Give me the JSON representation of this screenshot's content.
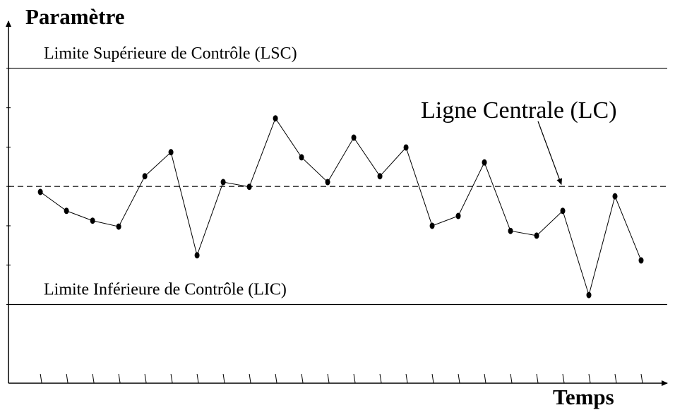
{
  "chart_data": {
    "type": "line",
    "ylabel": "Paramètre",
    "xlabel": "Temps",
    "x": [
      1,
      2,
      3,
      4,
      5,
      6,
      7,
      8,
      9,
      10,
      11,
      12,
      13,
      14,
      15,
      16,
      17,
      18,
      19,
      20,
      21,
      22,
      23,
      24
    ],
    "values": [
      4.86,
      4.38,
      4.13,
      3.98,
      5.26,
      5.87,
      3.25,
      5.11,
      4.99,
      6.73,
      5.74,
      5.11,
      6.24,
      5.26,
      5.99,
      4.0,
      4.25,
      5.61,
      3.87,
      3.75,
      4.38,
      2.24,
      4.75,
      3.12
    ],
    "color": "#000000",
    "xlim": [
      -0.22,
      25
    ],
    "xticks": [
      1,
      2,
      3,
      4,
      5,
      6,
      7,
      8,
      9,
      10,
      11,
      12,
      13,
      14,
      15,
      16,
      17,
      18,
      19,
      20,
      21,
      22,
      23,
      24
    ],
    "ylim": [
      0,
      9.2
    ],
    "yticks": [
      2,
      3,
      4,
      5,
      6,
      7,
      8
    ],
    "reference_lines": [
      {
        "label": "Limite Supérieure de Contrôle (LSC)",
        "value": 8,
        "style": "solid"
      },
      {
        "label": "Ligne Centrale (LC)",
        "value": 5,
        "style": "dashed"
      },
      {
        "label": "Limite Inférieure de Contrôle (LIC)",
        "value": 2,
        "style": "solid"
      }
    ]
  }
}
